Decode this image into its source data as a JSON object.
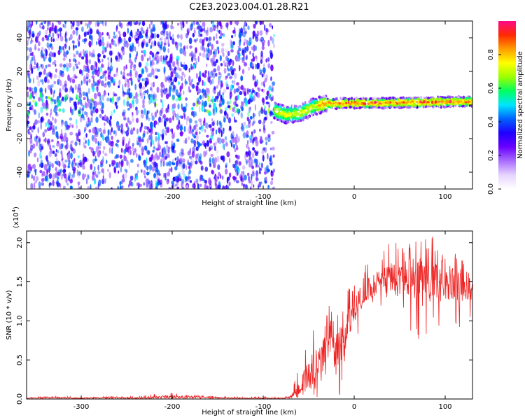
{
  "title": "C2E3.2023.004.01.28.R21",
  "chart_data": [
    {
      "type": "heatmap",
      "xlabel": "Height of straight line (km)",
      "ylabel": "Frequency (Hz)",
      "xlim": [
        -360,
        130
      ],
      "ylim": [
        -50,
        50
      ],
      "xticks": [
        -300,
        -200,
        -100,
        0,
        100
      ],
      "xtick_labels": [
        "-300",
        "-200",
        "-100",
        "0",
        "100"
      ],
      "yticks": [
        -40,
        -20,
        0,
        20,
        40
      ],
      "ytick_labels": [
        "-40",
        "-20",
        "0",
        "20",
        "40"
      ],
      "grid": false,
      "noise_region_end_km": -88,
      "ridge_path": [
        [
          -88,
          -3
        ],
        [
          -75,
          -6
        ],
        [
          -60,
          -5
        ],
        [
          -45,
          -1
        ],
        [
          -30,
          1
        ],
        [
          0,
          1
        ],
        [
          130,
          2
        ]
      ],
      "colorbar": {
        "label": "Normalized spectral amplitude",
        "range": [
          0.0,
          1.0
        ],
        "ticks": [
          0.0,
          0.2,
          0.4,
          0.6,
          0.8
        ],
        "tick_labels": [
          "0.0",
          "0.2",
          "0.4",
          "0.6",
          "0.8"
        ],
        "colors": [
          "#ffffff",
          "#e6d4ff",
          "#a96dff",
          "#6a00ff",
          "#1e00ff",
          "#0060ff",
          "#00e5ff",
          "#00ff60",
          "#9cff00",
          "#ffff00",
          "#ff9d00",
          "#ff2a00",
          "#ff0a8a"
        ]
      }
    },
    {
      "type": "line",
      "xlabel": "Height of straight line (km)",
      "ylabel": "SNR (10 * v/v)",
      "y_multiplier": "(x10",
      "y_multiplier_exp": "4",
      "y_multiplier_close": ")",
      "xlim": [
        -360,
        130
      ],
      "ylim": [
        0,
        2.15
      ],
      "xticks": [
        -300,
        -200,
        -100,
        0,
        100
      ],
      "xtick_labels": [
        "-300",
        "-200",
        "-100",
        "0",
        "100"
      ],
      "yticks": [
        0.0,
        0.5,
        1.0,
        1.5,
        2.0
      ],
      "ytick_labels": [
        "0.0",
        "0.5",
        "1.0",
        "1.5",
        "2.0"
      ],
      "line_color": "#ee2222",
      "series": [
        {
          "x": [
            -360,
            -330,
            -300,
            -270,
            -240,
            -200,
            -160,
            -120,
            -100,
            -90,
            -80,
            -70,
            -60,
            -50,
            -45,
            -40,
            -35,
            -30,
            -25,
            -20,
            -15,
            -10,
            -5,
            0,
            10,
            20,
            30,
            40,
            50,
            60,
            70,
            80,
            90,
            100,
            110,
            120,
            130
          ],
          "y": [
            0.01,
            0.02,
            0.01,
            0.02,
            0.01,
            0.03,
            0.02,
            0.01,
            0.01,
            0.01,
            0.01,
            0.03,
            0.12,
            0.35,
            0.42,
            0.45,
            0.55,
            0.7,
            0.8,
            0.55,
            0.7,
            0.75,
            1.0,
            1.15,
            1.3,
            1.45,
            1.5,
            1.55,
            1.5,
            1.55,
            1.5,
            1.5,
            1.6,
            1.45,
            1.5,
            1.45,
            1.4
          ],
          "peak_max": [
            0.02,
            0.04,
            0.04,
            0.03,
            0.04,
            0.09,
            0.04,
            0.03,
            0.03,
            0.03,
            0.04,
            0.09,
            0.45,
            0.85,
            0.95,
            0.9,
            1.0,
            1.2,
            1.55,
            1.15,
            1.25,
            1.3,
            1.45,
            1.5,
            1.7,
            1.75,
            1.9,
            2.05,
            2.0,
            2.0,
            2.1,
            2.15,
            2.05,
            2.0,
            1.95,
            1.85,
            1.75
          ],
          "trough_min": [
            0.0,
            0.0,
            0.0,
            0.0,
            0.0,
            0.0,
            0.0,
            0.0,
            0.0,
            0.0,
            0.0,
            0.0,
            0.0,
            0.05,
            0.05,
            0.02,
            0.05,
            0.15,
            0.1,
            0.0,
            0.05,
            0.1,
            0.45,
            0.7,
            0.9,
            1.1,
            1.2,
            1.2,
            1.1,
            0.9,
            0.7,
            0.8,
            0.75,
            0.85,
            0.95,
            0.9,
            0.95
          ]
        }
      ]
    }
  ]
}
